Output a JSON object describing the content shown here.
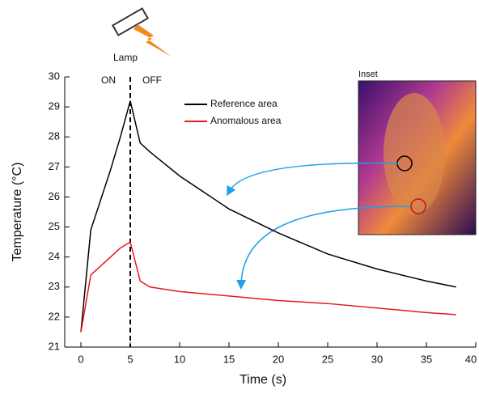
{
  "chart_data": {
    "type": "line",
    "x_label": "Time (s)",
    "y_label": "Temperature (°C)",
    "annotations": {
      "lamp": "Lamp",
      "on": "ON",
      "off": "OFF",
      "inset": "Inset"
    },
    "vline": 5,
    "x": [
      0,
      1,
      2,
      3,
      4,
      5,
      6,
      7,
      10,
      15,
      20,
      25,
      30,
      35,
      38
    ],
    "series": [
      {
        "name": "Reference area",
        "color": "#000000",
        "values": [
          21.5,
          24.9,
          25.9,
          26.9,
          28.0,
          29.2,
          27.8,
          27.5,
          26.7,
          25.6,
          24.8,
          24.1,
          23.6,
          23.2,
          23.0
        ]
      },
      {
        "name": "Anomalous area",
        "color": "#e8191c",
        "values": [
          21.5,
          23.4,
          23.7,
          24.0,
          24.3,
          24.5,
          23.2,
          23.0,
          22.85,
          22.7,
          22.55,
          22.45,
          22.3,
          22.15,
          22.08
        ]
      }
    ],
    "xlim": [
      0,
      40
    ],
    "xticks": [
      0,
      5,
      10,
      15,
      20,
      25,
      30,
      35,
      40
    ],
    "ylim": [
      21,
      30
    ],
    "yticks": [
      21,
      22,
      23,
      24,
      25,
      26,
      27,
      28,
      29,
      30
    ]
  }
}
